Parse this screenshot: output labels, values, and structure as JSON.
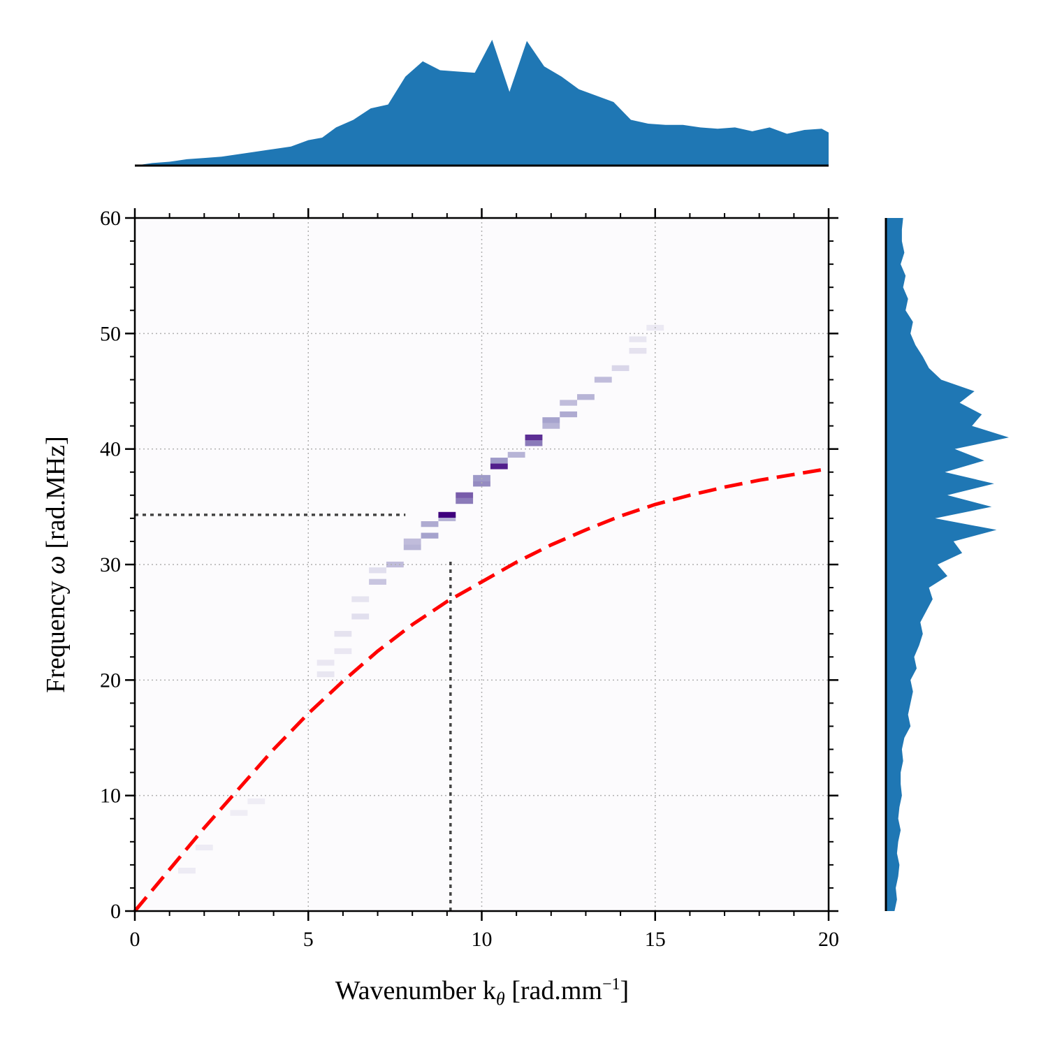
{
  "chart_data": {
    "type": "heatmap",
    "xlabel": "Wavenumber k",
    "xlabel_sub": "θ",
    "xlabel_unit_pre": " [rad.mm",
    "xlabel_unit_sup": "−1",
    "xlabel_unit_post": "]",
    "ylabel_pre": "Frequency ",
    "ylabel_symbol": "ω",
    "ylabel_unit": " [rad.MHz]",
    "xlim": [
      0,
      20
    ],
    "ylim": [
      0,
      60
    ],
    "xticks": [
      0,
      5,
      10,
      15,
      20
    ],
    "yticks": [
      0,
      10,
      20,
      30,
      40,
      50,
      60
    ],
    "grid": true,
    "colormap": "Purples",
    "colors": {
      "marginal_fill": "#1f77b4",
      "dispersion_curve": "#ff0000",
      "guide_lines": "#444444",
      "grid": "#b0b0b0",
      "heat_max": "#3f007d"
    },
    "heatmap_cells": [
      {
        "k": 1.5,
        "w": 3.5,
        "v": 0.03
      },
      {
        "k": 2.0,
        "w": 5.5,
        "v": 0.03
      },
      {
        "k": 3.0,
        "w": 8.5,
        "v": 0.02
      },
      {
        "k": 3.5,
        "w": 9.5,
        "v": 0.02
      },
      {
        "k": 5.5,
        "w": 20.5,
        "v": 0.06
      },
      {
        "k": 5.5,
        "w": 21.5,
        "v": 0.05
      },
      {
        "k": 6.0,
        "w": 22.5,
        "v": 0.05
      },
      {
        "k": 6.0,
        "w": 24.0,
        "v": 0.08
      },
      {
        "k": 6.5,
        "w": 25.5,
        "v": 0.1
      },
      {
        "k": 6.5,
        "w": 27.0,
        "v": 0.07
      },
      {
        "k": 7.0,
        "w": 28.5,
        "v": 0.25
      },
      {
        "k": 7.0,
        "w": 29.5,
        "v": 0.1
      },
      {
        "k": 7.5,
        "w": 30.0,
        "v": 0.3
      },
      {
        "k": 8.0,
        "w": 31.5,
        "v": 0.35
      },
      {
        "k": 8.0,
        "w": 32.0,
        "v": 0.3
      },
      {
        "k": 8.5,
        "w": 32.5,
        "v": 0.45
      },
      {
        "k": 8.5,
        "w": 33.5,
        "v": 0.4
      },
      {
        "k": 9.0,
        "w": 34.0,
        "v": 0.35
      },
      {
        "k": 9.0,
        "w": 34.3,
        "v": 1.0
      },
      {
        "k": 9.5,
        "w": 35.5,
        "v": 0.6
      },
      {
        "k": 9.5,
        "w": 36.0,
        "v": 0.7
      },
      {
        "k": 10.0,
        "w": 37.0,
        "v": 0.55
      },
      {
        "k": 10.0,
        "w": 37.5,
        "v": 0.5
      },
      {
        "k": 10.5,
        "w": 38.5,
        "v": 0.9
      },
      {
        "k": 10.5,
        "w": 39.0,
        "v": 0.5
      },
      {
        "k": 11.0,
        "w": 39.5,
        "v": 0.35
      },
      {
        "k": 11.5,
        "w": 40.5,
        "v": 0.6
      },
      {
        "k": 11.5,
        "w": 41.0,
        "v": 0.85
      },
      {
        "k": 12.0,
        "w": 42.0,
        "v": 0.35
      },
      {
        "k": 12.0,
        "w": 42.5,
        "v": 0.45
      },
      {
        "k": 12.5,
        "w": 43.0,
        "v": 0.4
      },
      {
        "k": 12.5,
        "w": 44.0,
        "v": 0.3
      },
      {
        "k": 13.0,
        "w": 44.5,
        "v": 0.35
      },
      {
        "k": 13.5,
        "w": 46.0,
        "v": 0.3
      },
      {
        "k": 14.0,
        "w": 47.0,
        "v": 0.15
      },
      {
        "k": 14.5,
        "w": 48.5,
        "v": 0.08
      },
      {
        "k": 14.5,
        "w": 49.5,
        "v": 0.06
      },
      {
        "k": 15.0,
        "w": 50.5,
        "v": 0.04
      }
    ],
    "dispersion_curve": {
      "k": [
        0,
        1,
        2,
        3,
        4,
        5,
        6,
        7,
        8,
        9,
        10,
        11,
        12,
        13,
        14,
        15,
        16,
        17,
        18,
        19,
        20
      ],
      "w": [
        0,
        3.6,
        7.2,
        10.6,
        14.0,
        17.1,
        19.9,
        22.5,
        24.8,
        26.8,
        28.5,
        30.2,
        31.7,
        33.0,
        34.2,
        35.2,
        36.0,
        36.7,
        37.3,
        37.8,
        38.3
      ]
    },
    "guide_lines": [
      {
        "orientation": "horizontal",
        "w": 34.3,
        "k_from": 0,
        "k_to": 7.8
      },
      {
        "orientation": "vertical",
        "k": 9.1,
        "w_from": 0,
        "w_to": 30.5
      }
    ],
    "marginal_top": {
      "k": [
        0,
        0.5,
        1,
        1.5,
        2,
        2.5,
        3,
        3.5,
        4,
        4.5,
        5,
        5.4,
        5.8,
        6.3,
        6.8,
        7.3,
        7.8,
        8.3,
        8.8,
        9.3,
        9.8,
        10.3,
        10.8,
        11.3,
        11.8,
        12.3,
        12.8,
        13.3,
        13.8,
        14.3,
        14.8,
        15.3,
        15.8,
        16.3,
        16.8,
        17.3,
        17.8,
        18.3,
        18.8,
        19.3,
        19.8,
        20
      ],
      "v": [
        0,
        0.02,
        0.03,
        0.05,
        0.06,
        0.07,
        0.09,
        0.11,
        0.13,
        0.15,
        0.2,
        0.22,
        0.3,
        0.36,
        0.45,
        0.48,
        0.7,
        0.82,
        0.75,
        0.74,
        0.73,
        0.99,
        0.58,
        0.98,
        0.78,
        0.7,
        0.6,
        0.55,
        0.5,
        0.36,
        0.33,
        0.32,
        0.32,
        0.3,
        0.29,
        0.3,
        0.27,
        0.3,
        0.25,
        0.28,
        0.29,
        0.26
      ]
    },
    "marginal_right": {
      "w": [
        0,
        1,
        2,
        3,
        4,
        5,
        6,
        7,
        8,
        9,
        10,
        11,
        12,
        13,
        14,
        15,
        16,
        17,
        18,
        19,
        20,
        21,
        22,
        23,
        24,
        25,
        26,
        27,
        28,
        29,
        30,
        31,
        32,
        33,
        34,
        35,
        36,
        37,
        38,
        39,
        40,
        41,
        42,
        43,
        44,
        45,
        46,
        47,
        48,
        49,
        50,
        51,
        52,
        53,
        54,
        55,
        56,
        57,
        58,
        59,
        60
      ],
      "v": [
        0.07,
        0.09,
        0.08,
        0.1,
        0.11,
        0.09,
        0.1,
        0.12,
        0.1,
        0.11,
        0.13,
        0.12,
        0.12,
        0.14,
        0.13,
        0.15,
        0.2,
        0.18,
        0.2,
        0.22,
        0.2,
        0.25,
        0.23,
        0.27,
        0.3,
        0.28,
        0.33,
        0.38,
        0.35,
        0.5,
        0.42,
        0.62,
        0.55,
        0.9,
        0.4,
        0.86,
        0.5,
        0.88,
        0.48,
        0.8,
        0.56,
        1.0,
        0.7,
        0.78,
        0.6,
        0.72,
        0.45,
        0.35,
        0.3,
        0.24,
        0.2,
        0.22,
        0.16,
        0.18,
        0.14,
        0.16,
        0.12,
        0.15,
        0.13,
        0.13,
        0.14
      ]
    }
  }
}
